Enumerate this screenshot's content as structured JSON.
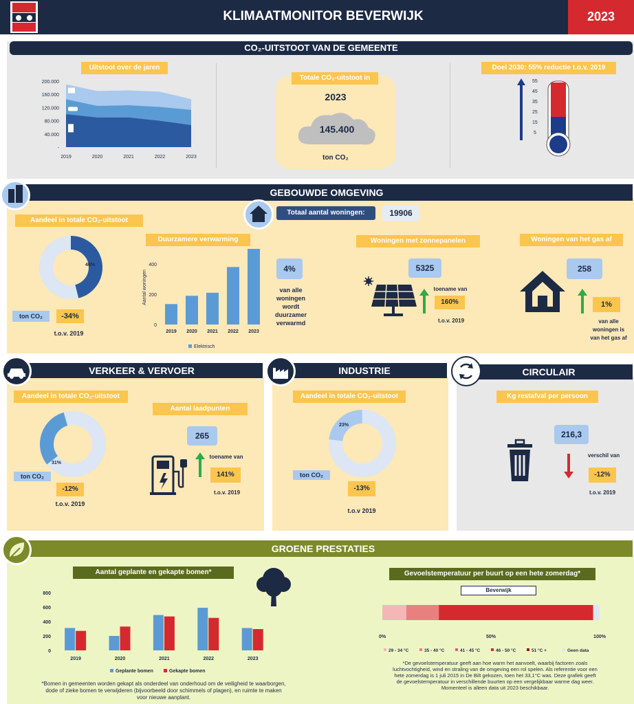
{
  "header": {
    "title": "KLIMAATMONITOR BEVERWIJK",
    "year": "2023"
  },
  "co2": {
    "title": "CO₂-UITSTOOT VAN DE GEMEENTE",
    "chart_title": "Uitstoot over de jaren",
    "total_title": "Totale CO₂-uitstoot in",
    "total_year": "2023",
    "total_value": "145.400",
    "total_unit": "ton CO₂",
    "goal_title": "Doel 2030: 55% reductie t.o.v. 2019"
  },
  "built": {
    "title": "GEBOUWDE OMGEVING",
    "homes_label": "Totaal aantal woningen:",
    "homes_value": "19906",
    "share_title": "Aandeel in totale CO₂-uitstoot",
    "share_pct": "46%",
    "unit": "ton CO₂",
    "change": "-34%",
    "since": "t.o.v. 2019",
    "heat_title": "Duurzamere verwarming",
    "heat_pct": "4%",
    "heat_text": "van alle woningen wordt duurzamer verwarmd",
    "solar_title": "Woningen met zonnepanelen",
    "solar_value": "5325",
    "solar_inc_label": "toename van",
    "solar_inc": "160%",
    "solar_since": "t.o.v. 2019",
    "gas_title": "Woningen van het gas af",
    "gas_value": "258",
    "gas_pct": "1%",
    "gas_text": "van alle woningen is van het gas af"
  },
  "traffic": {
    "title": "VERKEER & VERVOER",
    "share_title": "Aandeel in totale CO₂-uitstoot",
    "share_pct": "31%",
    "unit": "ton CO₂",
    "change": "-12%",
    "since": "t.o.v. 2019",
    "charge_title": "Aantal laadpunten",
    "charge_value": "265",
    "inc_label": "toename van",
    "inc": "141%",
    "inc_since": "t.o.v. 2019"
  },
  "industry": {
    "title": "INDUSTRIE",
    "share_title": "Aandeel in totale CO₂-uitstoot",
    "share_pct": "23%",
    "unit": "ton CO₂",
    "change": "-13%",
    "since": "t.o.v 2019"
  },
  "circular": {
    "title": "CIRCULAIR",
    "waste_title": "Kg restafval per persoon",
    "waste_value": "216,3",
    "diff_label": "verschil van",
    "diff": "-12%",
    "since": "t.o.v. 2019"
  },
  "green": {
    "title": "GROENE PRESTATIES",
    "trees_title": "Aantal geplante en gekapte bomen*",
    "trees_note": "*Bomen in gemeenten worden gekapt als onderdeel van onderhoud om de veiligheid te waarborgen, dode of zieke bomen te verwijderen (bijvoorbeeld door schimmels of plagen), en ruimte te maken voor nieuwe aanplant.",
    "heat_title": "Gevoelstemperatuur per buurt op een hete zomerdag*",
    "heat_area": "Beverwijk",
    "heat_note": "*De gevoelstemperatuur geeft aan hoe warm het aanvoelt, waarbij factoren zoals luchtvochtigheid, wind en straling van de omgeving een rol spelen. Als referentie voor een hete zomerdag is 1 juli 2015 in De Bilt gekozen, toen het 33,1°C was. Deze grafiek geeft de gevoelstemperatuur in verschillende buurten op een vergelijkbaar warme dag weer. Momenteel is alleen data uit 2023 beschikbaar."
  },
  "colors": {
    "navy": "#1c2a44",
    "orange": "#fcc54d",
    "red": "#d42a2f",
    "blue": "#5b9bd5",
    "light": "#fde8b8",
    "green_bg": "#eef5c4",
    "olive": "#7c8a2a"
  },
  "chart_data": [
    {
      "type": "area",
      "title": "Uitstoot over de jaren",
      "x": [
        "2019",
        "2020",
        "2021",
        "2022",
        "2023"
      ],
      "yticks": [
        "200.000",
        "160.000",
        "120.000",
        "80.000",
        "40.000",
        "-"
      ],
      "ylim": [
        0,
        200000
      ],
      "series": [
        {
          "values": [
            100000,
            90000,
            90000,
            80000,
            67000
          ]
        },
        {
          "values": [
            145000,
            125000,
            127000,
            122000,
            113000
          ]
        },
        {
          "values": [
            190000,
            170000,
            172000,
            168000,
            145400
          ]
        }
      ]
    },
    {
      "type": "bar",
      "title": "Duurzamere verwarming",
      "ylabel": "Aantal woningen",
      "x": [
        "2019",
        "2020",
        "2021",
        "2022",
        "2023"
      ],
      "yticks": [
        "400",
        "200",
        "0"
      ],
      "ylim": [
        0,
        500
      ],
      "series": [
        {
          "name": "Elektrisch",
          "values": [
            135,
            190,
            210,
            380,
            500
          ]
        }
      ]
    },
    {
      "type": "bar",
      "title": "Aantal geplante en gekapte bomen*",
      "x": [
        "2019",
        "2020",
        "2021",
        "2022",
        "2023"
      ],
      "yticks": [
        "800",
        "600",
        "400",
        "200",
        "0"
      ],
      "ylim": [
        0,
        800
      ],
      "series": [
        {
          "name": "Geplante bomen",
          "values": [
            310,
            200,
            490,
            590,
            310
          ]
        },
        {
          "name": "Gekapte bomen",
          "values": [
            270,
            330,
            470,
            450,
            295
          ]
        }
      ]
    },
    {
      "type": "bar",
      "title": "Gevoelstemperatuur per buurt op een hete zomerdag*",
      "categories": [
        "Beverwijk"
      ],
      "xticks": [
        "0%",
        "50%",
        "100%"
      ],
      "series": [
        {
          "name": "29 - 34 °C",
          "values": [
            11
          ]
        },
        {
          "name": "35 - 40 °C",
          "values": [
            15
          ]
        },
        {
          "name": "41 - 45 °C",
          "values": [
            0
          ]
        },
        {
          "name": "46 - 50 °C",
          "values": [
            71
          ]
        },
        {
          "name": "51 °C +",
          "values": [
            0
          ]
        },
        {
          "name": "Geen data",
          "values": [
            3
          ]
        }
      ]
    }
  ]
}
